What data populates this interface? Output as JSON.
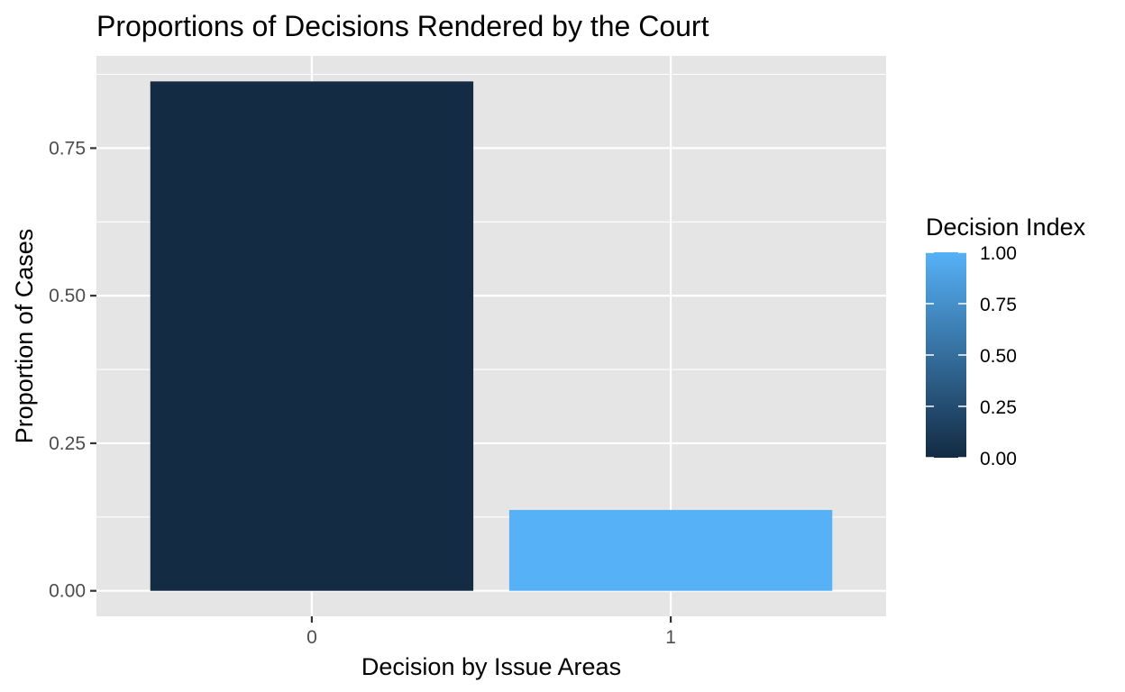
{
  "chart_data": {
    "type": "bar",
    "title": "Proportions of Decisions Rendered by the Court",
    "xlabel": "Decision by Issue Areas",
    "ylabel": "Proportion of Cases",
    "categories": [
      "0",
      "1"
    ],
    "values": [
      0.863,
      0.137
    ],
    "fill_index": [
      0,
      1
    ],
    "ylim": [
      -0.0432,
      0.9063
    ],
    "yticks": [
      0.0,
      0.25,
      0.5,
      0.75
    ],
    "ytick_labels": [
      "0.00",
      "0.25",
      "0.50",
      "0.75"
    ],
    "grid": true,
    "legend": {
      "title": "Decision Index",
      "type": "colorbar",
      "position": "right",
      "range": [
        0,
        1
      ],
      "ticks": [
        0.0,
        0.25,
        0.5,
        0.75,
        1.0
      ],
      "tick_labels": [
        "0.00",
        "0.25",
        "0.50",
        "0.75",
        "1.00"
      ],
      "low_color": "#132b43",
      "high_color": "#56b1f7"
    },
    "colors": {
      "panel_background": "#e5e5e5",
      "grid_line": "#ffffff",
      "bar_low": "#132b43",
      "bar_high": "#56b1f7"
    }
  }
}
